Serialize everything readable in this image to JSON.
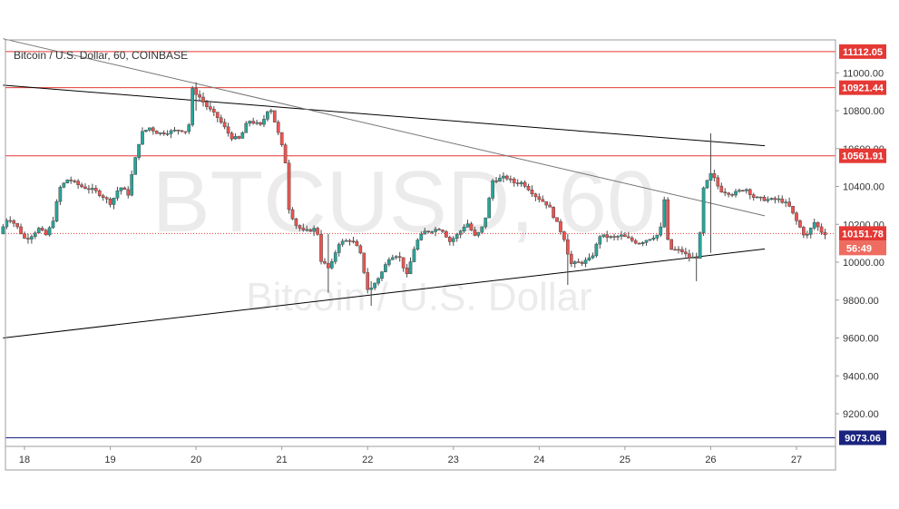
{
  "chart_data": {
    "type": "candlestick",
    "title": "Bitcoin / U.S. Dollar, 60, COINBASE",
    "watermark": {
      "symbol": "BTCUSD, 60",
      "name": "Bitcoin / U.S. Dollar"
    },
    "x_axis": {
      "tick_labels": [
        "18",
        "19",
        "20",
        "21",
        "22",
        "23",
        "24",
        "25",
        "26",
        "27"
      ]
    },
    "y_axis": {
      "range": [
        9040,
        11200
      ],
      "tick_labels": [
        "9200.00",
        "9400.00",
        "9600.00",
        "9800.00",
        "10000.00",
        "10200.00",
        "10400.00",
        "10600.00",
        "10800.00",
        "11000.00"
      ]
    },
    "grid": false,
    "up_color": "#26a69a",
    "down_color": "#ef5350",
    "horizontal_levels": [
      {
        "value": 11112.05,
        "label": "11112.05",
        "color": "#e53935"
      },
      {
        "value": 10921.44,
        "label": "10921.44",
        "color": "#e53935"
      },
      {
        "value": 10561.91,
        "label": "10561.91",
        "color": "#e53935"
      },
      {
        "value": 9073.06,
        "label": "9073.06",
        "color": "#1a237e"
      }
    ],
    "current_price": {
      "value": 10151.78,
      "label": "10151.78",
      "countdown": "56:49",
      "color": "#e53935"
    },
    "trendlines": [
      {
        "points": [
          [
            17.75,
            10935
          ],
          [
            26.63,
            10615
          ]
        ],
        "color": "#000000"
      },
      {
        "points": [
          [
            17.75,
            11180
          ],
          [
            26.63,
            10245
          ]
        ],
        "color": "#757575"
      },
      {
        "points": [
          [
            17.75,
            9600
          ],
          [
            26.63,
            10070
          ]
        ],
        "color": "#000000"
      }
    ],
    "candle_anchors": [
      [
        17.75,
        10150
      ],
      [
        17.85,
        10240
      ],
      [
        17.95,
        10190
      ],
      [
        18.05,
        10120
      ],
      [
        18.15,
        10150
      ],
      [
        18.2,
        10180
      ],
      [
        18.3,
        10140
      ],
      [
        18.38,
        10230
      ],
      [
        18.45,
        10390
      ],
      [
        18.55,
        10440
      ],
      [
        18.7,
        10400
      ],
      [
        18.85,
        10380
      ],
      [
        18.95,
        10350
      ],
      [
        19.05,
        10310
      ],
      [
        19.15,
        10400
      ],
      [
        19.25,
        10360
      ],
      [
        19.3,
        10480
      ],
      [
        19.4,
        10680
      ],
      [
        19.5,
        10710
      ],
      [
        19.6,
        10680
      ],
      [
        19.75,
        10690
      ],
      [
        19.85,
        10700
      ],
      [
        19.95,
        10690
      ],
      [
        20.0,
        10910
      ],
      [
        20.07,
        10880
      ],
      [
        20.15,
        10830
      ],
      [
        20.3,
        10760
      ],
      [
        20.45,
        10660
      ],
      [
        20.55,
        10650
      ],
      [
        20.65,
        10750
      ],
      [
        20.8,
        10720
      ],
      [
        20.9,
        10830
      ],
      [
        21.0,
        10680
      ],
      [
        21.08,
        10550
      ],
      [
        21.12,
        10290
      ],
      [
        21.2,
        10200
      ],
      [
        21.3,
        10160
      ],
      [
        21.45,
        10180
      ],
      [
        21.5,
        10010
      ],
      [
        21.6,
        9960
      ],
      [
        21.7,
        10100
      ],
      [
        21.85,
        10120
      ],
      [
        21.95,
        10060
      ],
      [
        22.05,
        9840
      ],
      [
        22.2,
        9940
      ],
      [
        22.3,
        10030
      ],
      [
        22.4,
        10040
      ],
      [
        22.5,
        9930
      ],
      [
        22.6,
        10100
      ],
      [
        22.7,
        10160
      ],
      [
        22.8,
        10170
      ],
      [
        22.9,
        10180
      ],
      [
        23.0,
        10110
      ],
      [
        23.1,
        10150
      ],
      [
        23.2,
        10210
      ],
      [
        23.3,
        10130
      ],
      [
        23.4,
        10200
      ],
      [
        23.5,
        10430
      ],
      [
        23.65,
        10450
      ],
      [
        23.75,
        10420
      ],
      [
        23.85,
        10420
      ],
      [
        24.0,
        10350
      ],
      [
        24.15,
        10300
      ],
      [
        24.35,
        10110
      ],
      [
        24.4,
        9990
      ],
      [
        24.55,
        10000
      ],
      [
        24.65,
        10020
      ],
      [
        24.75,
        10140
      ],
      [
        24.9,
        10130
      ],
      [
        25.0,
        10140
      ],
      [
        25.1,
        10120
      ],
      [
        25.2,
        10100
      ],
      [
        25.3,
        10120
      ],
      [
        25.45,
        10150
      ],
      [
        25.5,
        10330
      ],
      [
        25.55,
        10070
      ],
      [
        25.7,
        10060
      ],
      [
        25.8,
        10020
      ],
      [
        25.9,
        10030
      ],
      [
        25.95,
        10380
      ],
      [
        26.05,
        10470
      ],
      [
        26.15,
        10380
      ],
      [
        26.3,
        10360
      ],
      [
        26.45,
        10390
      ],
      [
        26.55,
        10340
      ],
      [
        26.7,
        10330
      ],
      [
        26.85,
        10330
      ],
      [
        26.95,
        10300
      ],
      [
        27.05,
        10210
      ],
      [
        27.15,
        10130
      ],
      [
        27.25,
        10210
      ],
      [
        27.35,
        10151.78
      ]
    ],
    "candle_extremes": [
      {
        "day": 19.98,
        "high": 10950,
        "low": 10800
      },
      {
        "day": 22.05,
        "high": 9900,
        "low": 9770
      },
      {
        "day": 25.98,
        "high": 10680,
        "low": 10050
      },
      {
        "day": 25.85,
        "high": 10050,
        "low": 9900
      },
      {
        "day": 24.35,
        "high": 10150,
        "low": 9880
      },
      {
        "day": 21.55,
        "high": 10150,
        "low": 9840
      }
    ]
  }
}
